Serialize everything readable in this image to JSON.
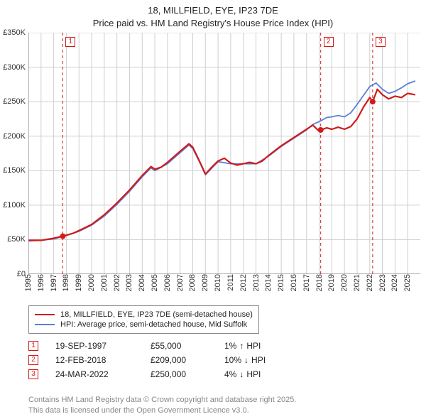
{
  "title_line1": "18, MILLFIELD, EYE, IP23 7DE",
  "title_line2": "Price paid vs. HM Land Registry's House Price Index (HPI)",
  "chart": {
    "type": "line",
    "background_color": "#ffffff",
    "grid_color": "#cfcfcf",
    "axis_color": "#666666",
    "label_fontsize": 11,
    "xlim": [
      1995,
      2026
    ],
    "ylim": [
      0,
      350000
    ],
    "ytick_step": 50000,
    "ytick_labels": [
      "£0",
      "£50K",
      "£100K",
      "£150K",
      "£200K",
      "£250K",
      "£300K",
      "£350K"
    ],
    "xtick_step": 1,
    "xtick_labels": [
      "1995",
      "1996",
      "1997",
      "1998",
      "1999",
      "2000",
      "2001",
      "2002",
      "2003",
      "2004",
      "2005",
      "2006",
      "2007",
      "2008",
      "2009",
      "2010",
      "2011",
      "2012",
      "2013",
      "2014",
      "2015",
      "2016",
      "2017",
      "2018",
      "2019",
      "2020",
      "2021",
      "2022",
      "2023",
      "2024",
      "2025"
    ],
    "marker_line_color": "#d11a1a",
    "marker_line_dash": "4,4",
    "series": [
      {
        "name_key": "legend.series1",
        "color": "#d11a1a",
        "width": 2.2,
        "points": [
          [
            1995.0,
            49000
          ],
          [
            1996.0,
            49000
          ],
          [
            1997.0,
            52000
          ],
          [
            1997.72,
            55000
          ],
          [
            1998.5,
            59000
          ],
          [
            1999.0,
            63000
          ],
          [
            2000.0,
            72000
          ],
          [
            2001.0,
            86000
          ],
          [
            2002.0,
            103000
          ],
          [
            2003.0,
            122000
          ],
          [
            2004.0,
            143000
          ],
          [
            2004.7,
            156000
          ],
          [
            2005.0,
            152000
          ],
          [
            2005.5,
            155000
          ],
          [
            2006.0,
            162000
          ],
          [
            2007.0,
            178000
          ],
          [
            2007.7,
            189000
          ],
          [
            2008.0,
            184000
          ],
          [
            2008.5,
            165000
          ],
          [
            2009.0,
            145000
          ],
          [
            2009.5,
            155000
          ],
          [
            2010.0,
            164000
          ],
          [
            2010.5,
            168000
          ],
          [
            2011.0,
            161000
          ],
          [
            2011.5,
            158000
          ],
          [
            2012.0,
            160000
          ],
          [
            2012.5,
            162000
          ],
          [
            2013.0,
            160000
          ],
          [
            2013.5,
            164000
          ],
          [
            2014.0,
            172000
          ],
          [
            2015.0,
            186000
          ],
          [
            2016.0,
            198000
          ],
          [
            2017.0,
            210000
          ],
          [
            2017.5,
            216000
          ],
          [
            2018.0,
            207000
          ],
          [
            2018.12,
            209000
          ],
          [
            2018.6,
            212000
          ],
          [
            2019.0,
            210000
          ],
          [
            2019.5,
            213000
          ],
          [
            2020.0,
            210000
          ],
          [
            2020.5,
            214000
          ],
          [
            2021.0,
            225000
          ],
          [
            2021.5,
            242000
          ],
          [
            2022.0,
            256000
          ],
          [
            2022.23,
            250000
          ],
          [
            2022.6,
            268000
          ],
          [
            2023.0,
            260000
          ],
          [
            2023.5,
            254000
          ],
          [
            2024.0,
            258000
          ],
          [
            2024.5,
            256000
          ],
          [
            2025.0,
            262000
          ],
          [
            2025.6,
            260000
          ]
        ]
      },
      {
        "name_key": "legend.series2",
        "color": "#5a7fd6",
        "width": 1.8,
        "points": [
          [
            1995.0,
            48000
          ],
          [
            1996.0,
            49000
          ],
          [
            1997.0,
            51000
          ],
          [
            1998.0,
            56000
          ],
          [
            1999.0,
            62000
          ],
          [
            2000.0,
            71000
          ],
          [
            2001.0,
            84000
          ],
          [
            2002.0,
            101000
          ],
          [
            2003.0,
            120000
          ],
          [
            2004.0,
            141000
          ],
          [
            2004.7,
            154000
          ],
          [
            2005.0,
            150000
          ],
          [
            2006.0,
            160000
          ],
          [
            2007.0,
            176000
          ],
          [
            2007.7,
            187000
          ],
          [
            2008.0,
            182000
          ],
          [
            2008.5,
            164000
          ],
          [
            2009.0,
            144000
          ],
          [
            2010.0,
            163000
          ],
          [
            2011.0,
            160000
          ],
          [
            2012.0,
            160000
          ],
          [
            2013.0,
            160000
          ],
          [
            2014.0,
            171000
          ],
          [
            2015.0,
            185000
          ],
          [
            2016.0,
            197000
          ],
          [
            2017.0,
            209000
          ],
          [
            2017.5,
            217000
          ],
          [
            2018.0,
            221000
          ],
          [
            2018.6,
            227000
          ],
          [
            2019.0,
            228000
          ],
          [
            2019.5,
            230000
          ],
          [
            2020.0,
            228000
          ],
          [
            2020.5,
            234000
          ],
          [
            2021.0,
            246000
          ],
          [
            2021.5,
            259000
          ],
          [
            2022.0,
            272000
          ],
          [
            2022.5,
            277000
          ],
          [
            2023.0,
            268000
          ],
          [
            2023.5,
            262000
          ],
          [
            2024.0,
            265000
          ],
          [
            2024.5,
            270000
          ],
          [
            2025.0,
            276000
          ],
          [
            2025.6,
            280000
          ]
        ]
      }
    ],
    "markers": [
      {
        "n": "1",
        "year": 1997.72,
        "price": 55000
      },
      {
        "n": "2",
        "year": 2018.12,
        "price": 209000
      },
      {
        "n": "3",
        "year": 2022.23,
        "price": 250000
      }
    ],
    "marker_dot_color": "#d11a1a",
    "marker_dot_radius": 4
  },
  "legend": {
    "series1": "18, MILLFIELD, EYE, IP23 7DE (semi-detached house)",
    "series2": "HPI: Average price, semi-detached house, Mid Suffolk"
  },
  "trades": [
    {
      "n": "1",
      "date": "19-SEP-1997",
      "price": "£55,000",
      "pct": "1%",
      "dir": "up",
      "vs": "HPI"
    },
    {
      "n": "2",
      "date": "12-FEB-2018",
      "price": "£209,000",
      "pct": "10%",
      "dir": "down",
      "vs": "HPI"
    },
    {
      "n": "3",
      "date": "24-MAR-2022",
      "price": "£250,000",
      "pct": "4%",
      "dir": "down",
      "vs": "HPI"
    }
  ],
  "footer_line1": "Contains HM Land Registry data © Crown copyright and database right 2025.",
  "footer_line2": "This data is licensed under the Open Government Licence v3.0.",
  "arrow_up": "↑",
  "arrow_down": "↓",
  "marker_border_color": "#d11a1a"
}
